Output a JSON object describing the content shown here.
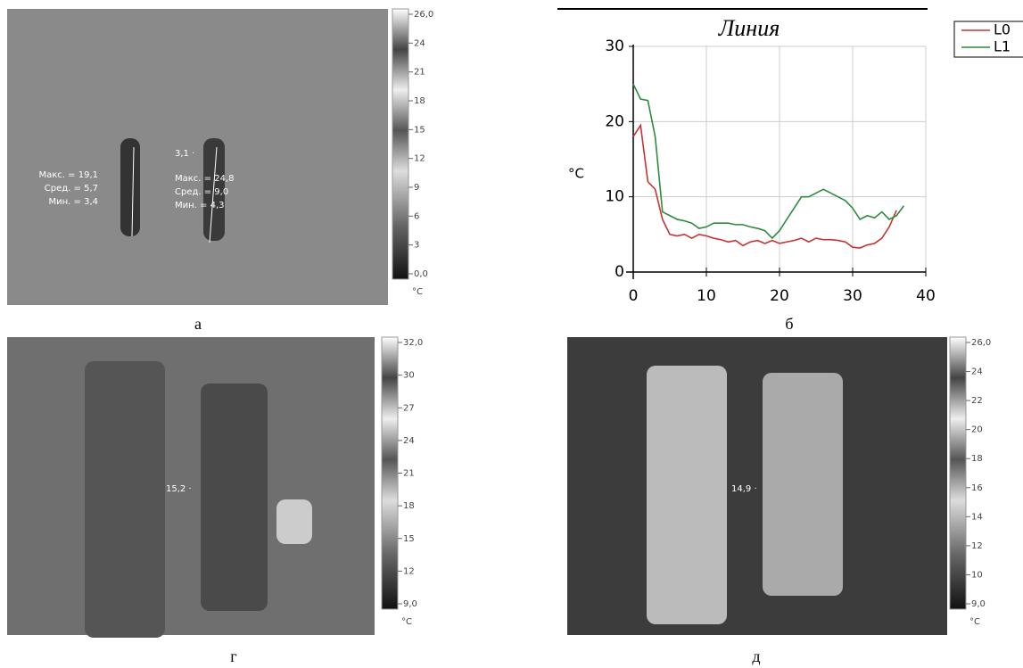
{
  "chart_data": {
    "type": "line",
    "title": "Линия",
    "ylabel": "°C",
    "x": [
      0,
      1,
      2,
      3,
      4,
      5,
      6,
      7,
      8,
      9,
      10,
      11,
      12,
      13,
      14,
      15,
      16,
      17,
      18,
      19,
      20,
      21,
      22,
      23,
      24,
      25,
      26,
      27,
      28,
      29,
      30,
      31,
      32,
      33,
      34,
      35,
      36,
      37
    ],
    "series": [
      {
        "name": "L0",
        "color": "#c83232",
        "values": [
          18,
          19.5,
          12,
          11,
          7,
          5,
          4.8,
          5,
          4.5,
          5,
          4.8,
          4.5,
          4.3,
          4,
          4.2,
          3.5,
          4,
          4.2,
          3.8,
          4.2,
          3.8,
          4,
          4.2,
          4.5,
          4,
          4.5,
          4.3,
          4.3,
          4.2,
          4,
          3.3,
          3.2,
          3.6,
          3.8,
          4.5,
          6,
          8.2,
          null
        ]
      },
      {
        "name": "L1",
        "color": "#2e8b3e",
        "values": [
          25,
          23,
          22.8,
          18,
          8,
          7.5,
          7,
          6.8,
          6.5,
          5.8,
          6,
          6.5,
          6.5,
          6.5,
          6.3,
          6.3,
          6,
          5.8,
          5.5,
          4.5,
          5.5,
          7,
          8.5,
          10,
          10,
          10.5,
          11,
          10.5,
          10,
          9.5,
          8.5,
          7,
          7.5,
          7.2,
          8,
          7,
          7.5,
          8.8
        ]
      }
    ],
    "xlim": [
      0,
      40
    ],
    "ylim": [
      0,
      30
    ],
    "xticks": [
      0,
      10,
      20,
      30,
      40
    ],
    "yticks": [
      0,
      10,
      20,
      30
    ],
    "grid": true,
    "legend": "right"
  },
  "chart_caption": "б",
  "panels": [
    {
      "caption": "а",
      "scale": [
        "26,0",
        "24",
        "21",
        "18",
        "15",
        "12",
        "9",
        "6",
        "3",
        "0,0"
      ],
      "unit": "°C",
      "annotations": [
        "Макс. = 19,1",
        "Сред. = 5,7",
        "Мин. = 3,4",
        "3,1 ·",
        "Макс. = 24,8",
        "Сред. = 9,0",
        "Мин. = 4,3"
      ]
    },
    {
      "caption": "г",
      "scale": [
        "32,0",
        "30",
        "27",
        "24",
        "21",
        "18",
        "15",
        "12",
        "9,0"
      ],
      "unit": "°C",
      "annotations": [
        "15,2 ·"
      ]
    },
    {
      "caption": "д",
      "scale": [
        "26,0",
        "24",
        "22",
        "20",
        "18",
        "16",
        "14",
        "12",
        "10",
        "9,0"
      ],
      "unit": "°C",
      "annotations": [
        "14,9 ·"
      ]
    }
  ]
}
